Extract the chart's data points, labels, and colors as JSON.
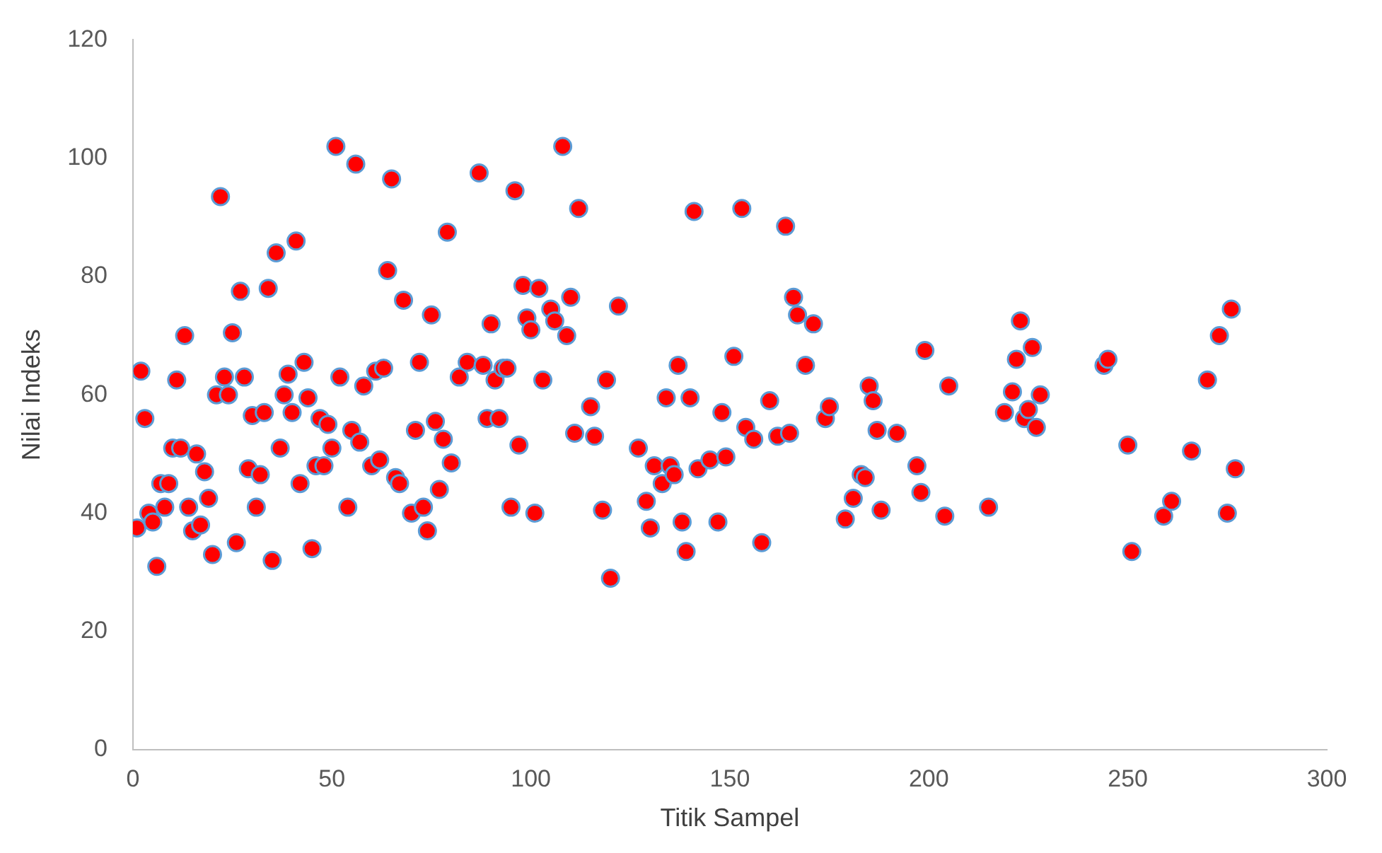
{
  "chart_data": {
    "type": "scatter",
    "xlabel": "Titik Sampel",
    "ylabel": "Nilai Indeks",
    "xlim": [
      0,
      300
    ],
    "xticks": [
      0,
      50,
      100,
      150,
      200,
      250,
      300
    ],
    "ylim": [
      0,
      120
    ],
    "yticks": [
      0,
      20,
      40,
      60,
      80,
      100,
      120
    ],
    "grid": false,
    "legend": false,
    "marker": "circle",
    "series": [
      {
        "color": "#ff0000",
        "x": [
          1,
          2,
          3,
          4,
          5,
          6,
          7,
          8,
          9,
          10,
          11,
          12,
          13,
          14,
          15,
          16,
          17,
          18,
          19,
          20,
          21,
          22,
          23,
          24,
          25,
          26,
          27,
          28,
          29,
          30,
          31,
          32,
          33,
          34,
          35,
          36,
          37,
          38,
          39,
          40,
          41,
          42,
          43,
          44,
          45,
          46,
          47,
          48,
          49,
          50,
          51,
          52,
          54,
          55,
          56,
          57,
          58,
          60,
          61,
          62,
          63,
          64,
          65,
          66,
          67,
          68,
          70,
          71,
          72,
          73,
          74,
          75,
          76,
          77,
          78,
          79,
          80,
          82,
          84,
          87,
          88,
          89,
          90,
          91,
          92,
          93,
          94,
          95,
          96,
          97,
          98,
          99,
          100,
          101,
          102,
          103,
          105,
          106,
          108,
          109,
          110,
          111,
          112,
          115,
          116,
          118,
          119,
          120,
          122,
          127,
          129,
          130,
          131,
          133,
          134,
          135,
          136,
          137,
          138,
          139,
          140,
          141,
          142,
          145,
          147,
          148,
          149,
          151,
          153,
          154,
          156,
          158,
          160,
          162,
          164,
          165,
          166,
          167,
          169,
          171,
          174,
          175,
          179,
          181,
          183,
          184,
          185,
          186,
          187,
          188,
          192,
          197,
          198,
          199,
          204,
          205,
          215,
          219,
          221,
          222,
          223,
          224,
          225,
          226,
          227,
          228,
          244,
          245,
          250,
          251,
          259,
          261,
          266,
          270,
          273,
          275,
          276,
          277
        ],
        "values": [
          37.5,
          64,
          56,
          40,
          38.5,
          31,
          45,
          41,
          45,
          51,
          62.5,
          51,
          70,
          41,
          37,
          50,
          38,
          47,
          42.5,
          33,
          60,
          93.5,
          63,
          60,
          70.5,
          35,
          77.5,
          63,
          47.5,
          56.5,
          41,
          46.5,
          57,
          78,
          32,
          84,
          51,
          60,
          63.5,
          57,
          86,
          45,
          65.5,
          59.5,
          34,
          48,
          56,
          48,
          55,
          51,
          102,
          63,
          41,
          54,
          99,
          52,
          61.5,
          48,
          64,
          49,
          64.5,
          81,
          96.5,
          46,
          45,
          76,
          40,
          54,
          65.5,
          41,
          37,
          73.5,
          55.5,
          44,
          52.5,
          87.5,
          48.5,
          63,
          65.5,
          97.5,
          65,
          56,
          72,
          62.5,
          56,
          64.5,
          64.5,
          41,
          94.5,
          51.5,
          78.5,
          73,
          71,
          40,
          78,
          62.5,
          74.5,
          72.5,
          102,
          70,
          76.5,
          53.5,
          91.5,
          58,
          53,
          40.5,
          62.5,
          29,
          75,
          51,
          42,
          37.5,
          48,
          45,
          59.5,
          48,
          46.5,
          65,
          38.5,
          33.5,
          59.5,
          91,
          47.5,
          49,
          38.5,
          57,
          49.5,
          66.5,
          91.5,
          54.5,
          52.5,
          35,
          59,
          53,
          88.5,
          53.5,
          76.5,
          73.5,
          65,
          72,
          56,
          58,
          39,
          42.5,
          46.5,
          46,
          61.5,
          59,
          54,
          40.5,
          53.5,
          48,
          43.5,
          67.5,
          39.5,
          61.5,
          41,
          57,
          60.5,
          66,
          72.5,
          56,
          57.5,
          68,
          54.5,
          60,
          65,
          66,
          51.5,
          33.5,
          39.5,
          42,
          50.5,
          62.5,
          70,
          40,
          74.5,
          47.5
        ]
      }
    ]
  }
}
